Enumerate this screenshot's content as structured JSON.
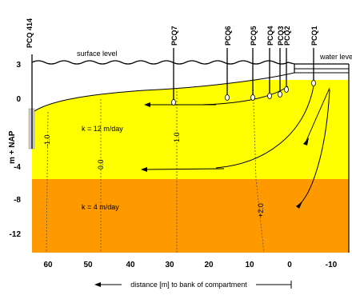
{
  "diagram": {
    "y_axis_label": "m + NAP",
    "y_ticks": [
      "3",
      "0",
      "-4",
      "-8",
      "-12"
    ],
    "x_ticks": [
      "60",
      "50",
      "40",
      "30",
      "20",
      "10",
      "0",
      "-10"
    ],
    "x_axis_label": "distance [m] to bank of compartment",
    "surface_label": "surface level",
    "water_label": "water level",
    "upper_layer_label": "k = 12 m/day",
    "lower_layer_label": "k = 4 m/day",
    "wells": [
      {
        "name": "PCQ 414"
      },
      {
        "name": "PCQ7"
      },
      {
        "name": "PCQ6"
      },
      {
        "name": "PCQ5"
      },
      {
        "name": "PCQ4"
      },
      {
        "name": "PCQ3"
      },
      {
        "name": "PCQ2"
      },
      {
        "name": "PCQ1"
      }
    ],
    "contours": [
      "-1.0",
      "0.0",
      "1.0",
      "+2.0"
    ],
    "colors": {
      "upper_layer": "#ffff00",
      "lower_layer": "#ff9900",
      "unsaturated": "#ffffff",
      "lines": "#000000",
      "well_screen": "#cccccc"
    }
  }
}
